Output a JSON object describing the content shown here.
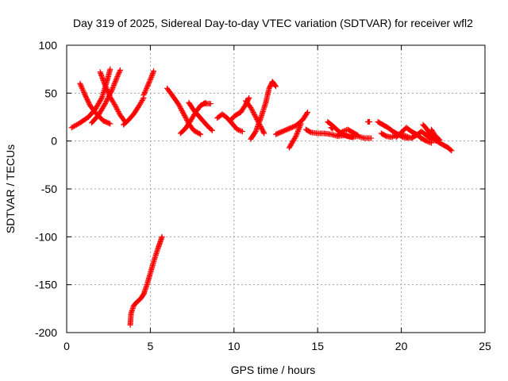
{
  "chart_data": {
    "type": "scatter",
    "title": "Day 319 of 2025, Sidereal Day-to-day VTEC variation (SDTVAR) for receiver wfl2",
    "xlabel": "GPS time / hours",
    "ylabel": "SDTVAR / TECUs",
    "xlim": [
      0,
      25
    ],
    "ylim": [
      -200,
      100
    ],
    "xticks": [
      0,
      5,
      10,
      15,
      20,
      25
    ],
    "yticks": [
      -200,
      -150,
      -100,
      -50,
      0,
      50,
      100
    ],
    "grid": true,
    "marker": "plus",
    "color": "#ff0000",
    "series": [
      {
        "points": [
          [
            0.3,
            14
          ],
          [
            0.8,
            19
          ],
          [
            1.3,
            25
          ],
          [
            1.7,
            33
          ],
          [
            2.1,
            45
          ],
          [
            2.4,
            62
          ],
          [
            2.6,
            75
          ]
        ]
      },
      {
        "points": [
          [
            0.8,
            60
          ],
          [
            1.1,
            48
          ],
          [
            1.4,
            37
          ],
          [
            1.8,
            28
          ],
          [
            2.2,
            21
          ],
          [
            2.6,
            18
          ]
        ]
      },
      {
        "points": [
          [
            1.5,
            19
          ],
          [
            1.9,
            27
          ],
          [
            2.3,
            39
          ],
          [
            2.7,
            53
          ],
          [
            3.0,
            66
          ],
          [
            3.2,
            74
          ]
        ]
      },
      {
        "points": [
          [
            2.0,
            72
          ],
          [
            2.3,
            58
          ],
          [
            2.6,
            46
          ],
          [
            2.9,
            37
          ],
          [
            3.2,
            27
          ],
          [
            3.5,
            20
          ]
        ]
      },
      {
        "points": [
          [
            3.4,
            17
          ],
          [
            3.7,
            22
          ],
          [
            4.0,
            28
          ],
          [
            4.3,
            36
          ],
          [
            4.6,
            45
          ]
        ]
      },
      {
        "points": [
          [
            4.6,
            48
          ],
          [
            4.8,
            56
          ],
          [
            5.0,
            64
          ],
          [
            5.2,
            73
          ]
        ]
      },
      {
        "points": [
          [
            3.8,
            -192
          ],
          [
            3.85,
            -180
          ],
          [
            4.0,
            -172
          ],
          [
            4.2,
            -168
          ],
          [
            4.4,
            -165
          ],
          [
            4.6,
            -160
          ],
          [
            4.8,
            -150
          ],
          [
            5.0,
            -138
          ],
          [
            5.2,
            -126
          ],
          [
            5.4,
            -115
          ],
          [
            5.6,
            -105
          ],
          [
            5.7,
            -100
          ]
        ]
      },
      {
        "points": [
          [
            6.0,
            55
          ],
          [
            6.3,
            48
          ],
          [
            6.7,
            38
          ],
          [
            7.0,
            28
          ],
          [
            7.3,
            18
          ],
          [
            7.6,
            11
          ],
          [
            8.0,
            7
          ]
        ]
      },
      {
        "points": [
          [
            6.8,
            8
          ],
          [
            7.1,
            13
          ],
          [
            7.4,
            21
          ],
          [
            7.7,
            30
          ],
          [
            8.0,
            37
          ],
          [
            8.3,
            40
          ]
        ]
      },
      {
        "points": [
          [
            7.3,
            40
          ],
          [
            7.6,
            32
          ],
          [
            8.0,
            24
          ],
          [
            8.4,
            16
          ],
          [
            8.7,
            11
          ]
        ]
      },
      {
        "points": [
          [
            8.2,
            39
          ],
          [
            8.6,
            39
          ]
        ]
      },
      {
        "points": [
          [
            9.0,
            24
          ],
          [
            9.3,
            28
          ],
          [
            9.6,
            24
          ],
          [
            9.9,
            18
          ],
          [
            10.2,
            12
          ],
          [
            10.5,
            10
          ]
        ]
      },
      {
        "points": [
          [
            9.8,
            22
          ],
          [
            10.1,
            27
          ],
          [
            10.4,
            30
          ],
          [
            10.7,
            38
          ],
          [
            10.9,
            45
          ]
        ]
      },
      {
        "points": [
          [
            10.7,
            42
          ],
          [
            11.0,
            35
          ],
          [
            11.3,
            25
          ],
          [
            11.6,
            15
          ],
          [
            11.8,
            8
          ]
        ]
      },
      {
        "points": [
          [
            11.0,
            2
          ],
          [
            11.3,
            10
          ],
          [
            11.6,
            24
          ],
          [
            11.9,
            40
          ],
          [
            12.1,
            55
          ],
          [
            12.3,
            62
          ],
          [
            12.5,
            57
          ]
        ]
      },
      {
        "points": [
          [
            12.5,
            7
          ],
          [
            12.9,
            10
          ],
          [
            13.3,
            13
          ],
          [
            13.7,
            16
          ],
          [
            14.1,
            22
          ],
          [
            14.4,
            30
          ]
        ]
      },
      {
        "points": [
          [
            13.3,
            -7
          ],
          [
            13.5,
            -1
          ],
          [
            13.7,
            5
          ],
          [
            14.0,
            18
          ]
        ]
      },
      {
        "points": [
          [
            14.3,
            12
          ],
          [
            14.6,
            9
          ],
          [
            15.0,
            8
          ],
          [
            15.4,
            8
          ],
          [
            15.8,
            7
          ],
          [
            16.2,
            5
          ],
          [
            16.6,
            6
          ],
          [
            17.0,
            4
          ],
          [
            17.4,
            5
          ],
          [
            17.8,
            3
          ],
          [
            18.2,
            3
          ]
        ]
      },
      {
        "points": [
          [
            15.6,
            20
          ],
          [
            15.9,
            16
          ],
          [
            16.2,
            11
          ],
          [
            16.5,
            7
          ],
          [
            16.8,
            5
          ],
          [
            17.1,
            4
          ]
        ]
      },
      {
        "points": [
          [
            16.2,
            6
          ],
          [
            16.5,
            10
          ],
          [
            16.8,
            12
          ],
          [
            17.1,
            9
          ],
          [
            17.4,
            6
          ]
        ]
      },
      {
        "points": [
          [
            15.8,
            14
          ],
          [
            15.9,
            13
          ]
        ]
      },
      {
        "points": [
          [
            18.0,
            20
          ],
          [
            18.1,
            20
          ]
        ]
      },
      {
        "points": [
          [
            18.8,
            8
          ],
          [
            19.1,
            5
          ],
          [
            19.4,
            4
          ],
          [
            19.7,
            6
          ],
          [
            20.0,
            7
          ],
          [
            20.3,
            5
          ],
          [
            20.6,
            3
          ],
          [
            20.9,
            6
          ],
          [
            21.2,
            10
          ],
          [
            21.5,
            6
          ],
          [
            21.8,
            2
          ],
          [
            22.1,
            0
          ]
        ]
      },
      {
        "points": [
          [
            18.6,
            20
          ],
          [
            18.9,
            17
          ],
          [
            19.2,
            14
          ],
          [
            19.5,
            10
          ],
          [
            19.8,
            7
          ],
          [
            20.1,
            4
          ],
          [
            20.4,
            3
          ]
        ]
      },
      {
        "points": [
          [
            19.7,
            4
          ],
          [
            20.0,
            9
          ],
          [
            20.3,
            14
          ],
          [
            20.6,
            10
          ],
          [
            20.9,
            7
          ],
          [
            21.2,
            3
          ],
          [
            21.5,
            0
          ],
          [
            21.8,
            -2
          ]
        ]
      },
      {
        "points": [
          [
            21.3,
            17
          ],
          [
            21.5,
            13
          ],
          [
            21.7,
            8
          ],
          [
            21.9,
            4
          ],
          [
            22.2,
            -1
          ],
          [
            22.5,
            -4
          ],
          [
            22.8,
            -7
          ],
          [
            23.0,
            -10
          ]
        ]
      },
      {
        "points": [
          [
            21.8,
            12
          ],
          [
            22.0,
            6
          ],
          [
            22.3,
            1
          ]
        ]
      }
    ]
  }
}
